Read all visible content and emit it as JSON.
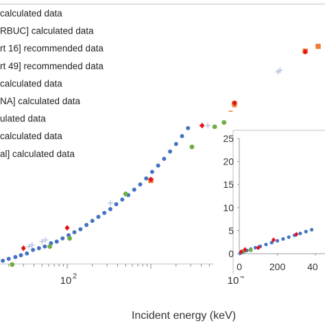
{
  "chart_data": {
    "type": "scatter",
    "xlabel": "Incident energy (keV)",
    "xscale": "log",
    "x_tick_labels": [
      "10",
      "2",
      "10",
      "4"
    ],
    "x_ticks": [
      {
        "base": "10",
        "exp": "2",
        "value": 100
      },
      {
        "base": "10",
        "exp": "4",
        "value": 10000
      }
    ],
    "legend_visible_text": [
      "calculated data",
      "RBUC] calculated data",
      "rt 16] recommended data",
      "rt 49] recommended data",
      "calculated data",
      "NA] calculated data",
      "ulated data",
      "calculated data",
      "al] calculated data"
    ],
    "series": [
      {
        "marker": "blue-circle",
        "color": "#4472c4",
        "points": [
          [
            10,
            62
          ],
          [
            12,
            63
          ],
          [
            14,
            64
          ],
          [
            17,
            66
          ],
          [
            20,
            67
          ],
          [
            24,
            68
          ],
          [
            28,
            69
          ],
          [
            33,
            70
          ],
          [
            39,
            72
          ],
          [
            46,
            73
          ],
          [
            54,
            74
          ],
          [
            64,
            76
          ],
          [
            75,
            77
          ],
          [
            88,
            79
          ],
          [
            104,
            81
          ],
          [
            122,
            83
          ],
          [
            144,
            85
          ],
          [
            170,
            88
          ],
          [
            200,
            91
          ],
          [
            236,
            94
          ],
          [
            278,
            97
          ],
          [
            328,
            100
          ],
          [
            386,
            104
          ],
          [
            455,
            108
          ],
          [
            537,
            112
          ],
          [
            633,
            117
          ],
          [
            746,
            122
          ],
          [
            880,
            128
          ],
          [
            1037,
            135
          ],
          [
            1223,
            142
          ],
          [
            1441,
            150
          ],
          [
            1699,
            159
          ],
          [
            2003,
            169
          ],
          [
            2361,
            180
          ],
          [
            2783,
            192
          ]
        ]
      },
      {
        "marker": "red-diamond",
        "color": "#e8101a",
        "points": [
          [
            30,
            73
          ],
          [
            100,
            86
          ],
          [
            1000,
            127
          ],
          [
            4100,
            196
          ],
          [
            10000,
            235
          ],
          [
            70000,
            355
          ]
        ]
      },
      {
        "marker": "green-circle",
        "color": "#70ad47",
        "points": [
          [
            22,
            64
          ],
          [
            62,
            74
          ],
          [
            107,
            79
          ],
          [
            500,
            113
          ],
          [
            3100,
            165
          ],
          [
            5800,
            194
          ],
          [
            7500,
            201
          ]
        ]
      },
      {
        "marker": "orange-square",
        "color": "#ed7d31",
        "points": [
          [
            1000,
            126
          ],
          [
            10000,
            234
          ],
          [
            70000,
            357
          ],
          [
            100000,
            371
          ],
          [
            140000,
            390
          ],
          [
            180000,
            402
          ],
          [
            230000,
            418
          ],
          [
            270000,
            433
          ],
          [
            330000,
            452
          ],
          [
            400000,
            470
          ]
        ]
      },
      {
        "marker": "plus",
        "color": "#a9b8d8",
        "points": [
          [
            35,
            74
          ],
          [
            38,
            75
          ],
          [
            50,
            77
          ],
          [
            55,
            78
          ],
          [
            330,
            105
          ],
          [
            4800,
            196
          ],
          [
            33000,
            302
          ],
          [
            35000,
            306
          ]
        ]
      },
      {
        "marker": "dash",
        "color": "#ed7d31",
        "points": [
          [
            4000,
            196
          ],
          [
            9000,
            220
          ],
          [
            10000,
            228
          ]
        ]
      }
    ],
    "inset": {
      "type": "scatter",
      "x_tick_labels": [
        "0",
        "200",
        "40"
      ],
      "y_tick_labels": [
        "0",
        "5",
        "10",
        "15",
        "20",
        "25"
      ],
      "xlim": [
        0,
        450
      ],
      "ylim": [
        0,
        25
      ],
      "series": [
        {
          "marker": "blue-circle",
          "color": "#4472c4",
          "points": [
            [
              5,
              0.1
            ],
            [
              15,
              0.3
            ],
            [
              25,
              0.5
            ],
            [
              40,
              0.7
            ],
            [
              60,
              1.0
            ],
            [
              85,
              1.3
            ],
            [
              110,
              1.6
            ],
            [
              140,
              2.0
            ],
            [
              170,
              2.4
            ],
            [
              200,
              2.8
            ],
            [
              230,
              3.2
            ],
            [
              260,
              3.6
            ],
            [
              290,
              4.0
            ],
            [
              320,
              4.4
            ],
            [
              350,
              4.8
            ],
            [
              380,
              5.2
            ]
          ]
        },
        {
          "marker": "red-diamond",
          "color": "#e8101a",
          "points": [
            [
              10,
              0.4
            ],
            [
              30,
              0.9
            ],
            [
              100,
              1.3
            ],
            [
              180,
              3.0
            ],
            [
              300,
              4.2
            ]
          ]
        },
        {
          "marker": "green-circle",
          "color": "#70ad47",
          "points": [
            [
              20,
              0.5
            ],
            [
              60,
              0.8
            ]
          ]
        }
      ]
    }
  }
}
